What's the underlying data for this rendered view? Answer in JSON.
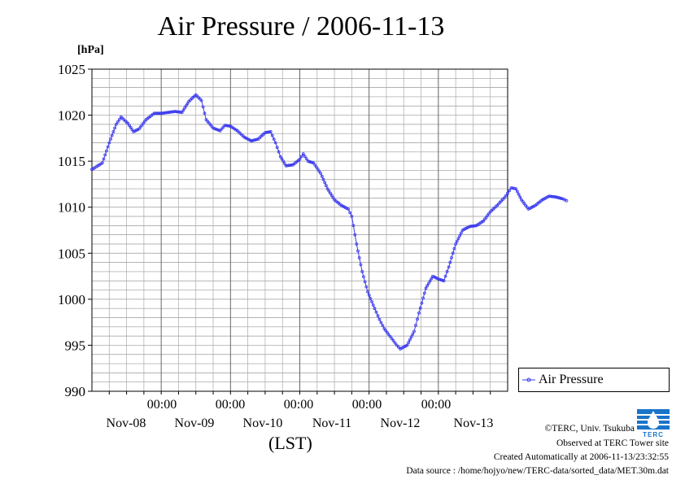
{
  "chart_data": {
    "type": "line",
    "title": "Air Pressure / 2006-11-13",
    "unit_label": "[hPa]",
    "xlabel": "(LST)",
    "ylim": [
      990,
      1025
    ],
    "yticks": [
      "990",
      "995",
      "1000",
      "1005",
      "1010",
      "1015",
      "1020",
      "1025"
    ],
    "x_ticks": [
      {
        "time": "00:00",
        "date": "Nov-08"
      },
      {
        "time": "00:00",
        "date": "Nov-09"
      },
      {
        "time": "00:00",
        "date": "Nov-10"
      },
      {
        "time": "00:00",
        "date": "Nov-11"
      },
      {
        "time": "00:00",
        "date": "Nov-12"
      },
      {
        "time": "00:00",
        "date": "Nov-13"
      }
    ],
    "x_days_range": [
      -1,
      5
    ],
    "grid": true,
    "legend": "right",
    "series": [
      {
        "name": "Air Pressure",
        "color": "#3a3aee",
        "points": [
          [
            -1.0,
            1014.1
          ],
          [
            -0.85,
            1014.8
          ],
          [
            -0.75,
            1017.0
          ],
          [
            -0.65,
            1019.0
          ],
          [
            -0.58,
            1019.8
          ],
          [
            -0.48,
            1019.1
          ],
          [
            -0.4,
            1018.2
          ],
          [
            -0.32,
            1018.5
          ],
          [
            -0.22,
            1019.5
          ],
          [
            -0.1,
            1020.2
          ],
          [
            0.0,
            1020.2
          ],
          [
            0.1,
            1020.3
          ],
          [
            0.2,
            1020.4
          ],
          [
            0.3,
            1020.3
          ],
          [
            0.4,
            1021.5
          ],
          [
            0.5,
            1022.2
          ],
          [
            0.58,
            1021.6
          ],
          [
            0.65,
            1019.5
          ],
          [
            0.75,
            1018.6
          ],
          [
            0.85,
            1018.3
          ],
          [
            0.92,
            1018.9
          ],
          [
            1.0,
            1018.8
          ],
          [
            1.1,
            1018.3
          ],
          [
            1.2,
            1017.6
          ],
          [
            1.3,
            1017.2
          ],
          [
            1.4,
            1017.4
          ],
          [
            1.5,
            1018.1
          ],
          [
            1.58,
            1018.2
          ],
          [
            1.65,
            1017.0
          ],
          [
            1.72,
            1015.5
          ],
          [
            1.8,
            1014.5
          ],
          [
            1.9,
            1014.6
          ],
          [
            2.0,
            1015.2
          ],
          [
            2.05,
            1015.8
          ],
          [
            2.12,
            1015.0
          ],
          [
            2.2,
            1014.8
          ],
          [
            2.3,
            1013.7
          ],
          [
            2.4,
            1012.0
          ],
          [
            2.5,
            1010.8
          ],
          [
            2.6,
            1010.2
          ],
          [
            2.7,
            1009.8
          ],
          [
            2.75,
            1009.0
          ],
          [
            2.82,
            1006.0
          ],
          [
            2.9,
            1003.0
          ],
          [
            2.98,
            1000.8
          ],
          [
            3.08,
            999.0
          ],
          [
            3.15,
            997.8
          ],
          [
            3.22,
            996.8
          ],
          [
            3.28,
            996.2
          ],
          [
            3.35,
            995.5
          ],
          [
            3.4,
            995.0
          ],
          [
            3.45,
            994.6
          ],
          [
            3.55,
            995.0
          ],
          [
            3.65,
            996.5
          ],
          [
            3.72,
            998.5
          ],
          [
            3.82,
            1001.2
          ],
          [
            3.92,
            1002.5
          ],
          [
            4.0,
            1002.2
          ],
          [
            4.08,
            1002.0
          ],
          [
            4.15,
            1003.5
          ],
          [
            4.25,
            1006.0
          ],
          [
            4.35,
            1007.5
          ],
          [
            4.45,
            1007.9
          ],
          [
            4.55,
            1008.0
          ],
          [
            4.65,
            1008.5
          ],
          [
            4.75,
            1009.5
          ],
          [
            4.85,
            1010.2
          ],
          [
            4.95,
            1011.0
          ],
          [
            5.0,
            1011.5
          ],
          [
            5.05,
            1012.1
          ],
          [
            5.12,
            1012.0
          ],
          [
            5.2,
            1010.8
          ],
          [
            5.3,
            1009.8
          ],
          [
            5.4,
            1010.2
          ],
          [
            5.5,
            1010.8
          ],
          [
            5.6,
            1011.2
          ],
          [
            5.7,
            1011.1
          ],
          [
            5.8,
            1010.9
          ],
          [
            5.85,
            1010.7
          ]
        ]
      }
    ]
  },
  "legend": {
    "label": "Air Pressure"
  },
  "credits": {
    "copyright": "©TERC, Univ. Tsukuba",
    "observed": "Observed at TERC Tower site",
    "created": "Created Automatically at 2006-11-13/23:32:55",
    "source": "Data source : /home/hojyo/new/TERC-data/sorted_data/MET.30m.dat"
  },
  "logo": {
    "text": "TERC",
    "color": "#1a74c9"
  }
}
